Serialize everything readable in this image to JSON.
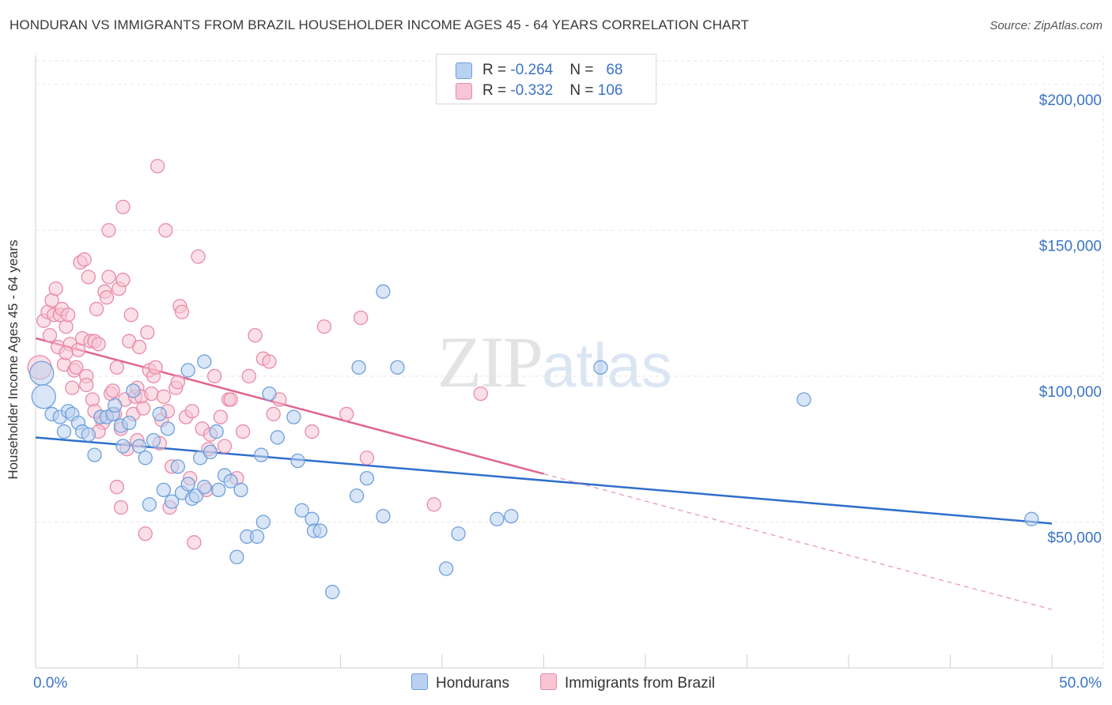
{
  "header": {
    "title": "HONDURAN VS IMMIGRANTS FROM BRAZIL HOUSEHOLDER INCOME AGES 45 - 64 YEARS CORRELATION CHART",
    "source": "Source: ZipAtlas.com"
  },
  "watermark": {
    "zip": "ZIP",
    "atlas": "atlas"
  },
  "legend": {
    "r_label": "R =",
    "n_label": "N =",
    "series": [
      {
        "r": "-0.264",
        "n": "68",
        "color": "#6f9fdc",
        "fill": "#b9d1f1"
      },
      {
        "r": "-0.332",
        "n": "106",
        "color": "#e98aa8",
        "fill": "#f7c5d4"
      }
    ]
  },
  "bottom_legend": [
    "Hondurans",
    "Immigrants from Brazil"
  ],
  "chart_data": {
    "type": "scatter",
    "title": "HONDURAN VS IMMIGRANTS FROM BRAZIL HOUSEHOLDER INCOME AGES 45 - 64 YEARS CORRELATION CHART",
    "ylabel": "Householder Income Ages 45 - 64 years",
    "xlabel": "",
    "xlim": [
      0,
      50
    ],
    "ylim": [
      0,
      210000
    ],
    "x_tick_labels": [
      "0.0%",
      "50.0%"
    ],
    "y_ticks": [
      50000,
      100000,
      150000,
      200000
    ],
    "y_tick_labels": [
      "$50,000",
      "$100,000",
      "$150,000",
      "$200,000"
    ],
    "grid": true,
    "legend_position": "top-center",
    "series": [
      {
        "name": "Hondurans",
        "color": "#6f9fdc",
        "fill": "#b9d1f1",
        "trend": {
          "x": [
            0,
            50
          ],
          "y": [
            79000,
            49500
          ],
          "style": "solid",
          "color": "#2f6fcc"
        },
        "points": [
          {
            "x": 0.3,
            "y": 101000,
            "big": true
          },
          {
            "x": 0.4,
            "y": 93000,
            "big": true
          },
          {
            "x": 0.8,
            "y": 87000
          },
          {
            "x": 1.2,
            "y": 86000
          },
          {
            "x": 1.4,
            "y": 81000
          },
          {
            "x": 1.6,
            "y": 88000
          },
          {
            "x": 1.8,
            "y": 87000
          },
          {
            "x": 2.1,
            "y": 84000
          },
          {
            "x": 2.3,
            "y": 81000
          },
          {
            "x": 2.6,
            "y": 80000
          },
          {
            "x": 2.9,
            "y": 73000
          },
          {
            "x": 3.2,
            "y": 86000
          },
          {
            "x": 3.5,
            "y": 86000
          },
          {
            "x": 3.8,
            "y": 87000
          },
          {
            "x": 3.9,
            "y": 90000
          },
          {
            "x": 4.2,
            "y": 83000
          },
          {
            "x": 4.3,
            "y": 76000
          },
          {
            "x": 4.6,
            "y": 84000
          },
          {
            "x": 4.8,
            "y": 95000
          },
          {
            "x": 5.1,
            "y": 76000
          },
          {
            "x": 5.4,
            "y": 72000
          },
          {
            "x": 5.6,
            "y": 56000
          },
          {
            "x": 5.8,
            "y": 78000
          },
          {
            "x": 6.1,
            "y": 87000
          },
          {
            "x": 6.3,
            "y": 61000
          },
          {
            "x": 6.5,
            "y": 82000
          },
          {
            "x": 6.7,
            "y": 57000
          },
          {
            "x": 7.0,
            "y": 69000
          },
          {
            "x": 7.2,
            "y": 60000
          },
          {
            "x": 7.5,
            "y": 63000
          },
          {
            "x": 7.7,
            "y": 58000
          },
          {
            "x": 7.9,
            "y": 59000
          },
          {
            "x": 8.1,
            "y": 72000
          },
          {
            "x": 8.3,
            "y": 62000
          },
          {
            "x": 8.6,
            "y": 74000
          },
          {
            "x": 8.9,
            "y": 81000
          },
          {
            "x": 9.0,
            "y": 61000
          },
          {
            "x": 9.3,
            "y": 66000
          },
          {
            "x": 9.6,
            "y": 64000
          },
          {
            "x": 9.9,
            "y": 38000
          },
          {
            "x": 10.1,
            "y": 61000
          },
          {
            "x": 10.4,
            "y": 45000
          },
          {
            "x": 10.9,
            "y": 45000
          },
          {
            "x": 11.1,
            "y": 73000
          },
          {
            "x": 11.2,
            "y": 50000
          },
          {
            "x": 11.5,
            "y": 94000
          },
          {
            "x": 11.9,
            "y": 79000
          },
          {
            "x": 12.7,
            "y": 86000
          },
          {
            "x": 12.9,
            "y": 71000
          },
          {
            "x": 13.1,
            "y": 54000
          },
          {
            "x": 13.6,
            "y": 51000
          },
          {
            "x": 13.7,
            "y": 47000
          },
          {
            "x": 14.0,
            "y": 47000
          },
          {
            "x": 14.6,
            "y": 26000
          },
          {
            "x": 15.8,
            "y": 59000
          },
          {
            "x": 15.9,
            "y": 103000
          },
          {
            "x": 16.3,
            "y": 65000
          },
          {
            "x": 17.1,
            "y": 129000
          },
          {
            "x": 17.1,
            "y": 52000
          },
          {
            "x": 17.8,
            "y": 103000
          },
          {
            "x": 20.2,
            "y": 34000
          },
          {
            "x": 20.8,
            "y": 46000
          },
          {
            "x": 22.7,
            "y": 51000
          },
          {
            "x": 23.4,
            "y": 52000
          },
          {
            "x": 27.8,
            "y": 103000
          },
          {
            "x": 37.8,
            "y": 92000
          },
          {
            "x": 49.0,
            "y": 51000
          },
          {
            "x": 7.5,
            "y": 102000
          },
          {
            "x": 8.3,
            "y": 105000
          }
        ]
      },
      {
        "name": "Immigrants from Brazil",
        "color": "#e98aa8",
        "fill": "#f7c5d4",
        "trend": {
          "x": [
            0,
            25
          ],
          "y": [
            113000,
            66500
          ],
          "style": "solid",
          "color": "#e0658e",
          "extension": {
            "x": [
              25,
              50
            ],
            "y": [
              66500,
              20000
            ],
            "style": "dashed"
          }
        },
        "points": [
          {
            "x": 0.2,
            "y": 103000,
            "big": true
          },
          {
            "x": 0.4,
            "y": 119000
          },
          {
            "x": 0.6,
            "y": 122000
          },
          {
            "x": 0.7,
            "y": 114000
          },
          {
            "x": 0.8,
            "y": 126000
          },
          {
            "x": 0.9,
            "y": 121000
          },
          {
            "x": 1.0,
            "y": 130000
          },
          {
            "x": 1.1,
            "y": 110000
          },
          {
            "x": 1.2,
            "y": 121000
          },
          {
            "x": 1.3,
            "y": 123000
          },
          {
            "x": 1.4,
            "y": 104000
          },
          {
            "x": 1.5,
            "y": 117000
          },
          {
            "x": 1.6,
            "y": 121000
          },
          {
            "x": 1.7,
            "y": 111000
          },
          {
            "x": 1.8,
            "y": 96000
          },
          {
            "x": 1.9,
            "y": 102000
          },
          {
            "x": 2.0,
            "y": 103000
          },
          {
            "x": 2.1,
            "y": 109000
          },
          {
            "x": 2.2,
            "y": 139000
          },
          {
            "x": 2.3,
            "y": 113000
          },
          {
            "x": 2.4,
            "y": 140000
          },
          {
            "x": 2.5,
            "y": 100000
          },
          {
            "x": 2.6,
            "y": 134000
          },
          {
            "x": 2.7,
            "y": 112000
          },
          {
            "x": 2.8,
            "y": 92000
          },
          {
            "x": 2.9,
            "y": 112000
          },
          {
            "x": 3.0,
            "y": 123000
          },
          {
            "x": 3.1,
            "y": 111000
          },
          {
            "x": 3.2,
            "y": 86000
          },
          {
            "x": 3.3,
            "y": 84000
          },
          {
            "x": 3.4,
            "y": 129000
          },
          {
            "x": 3.5,
            "y": 127000
          },
          {
            "x": 3.6,
            "y": 134000
          },
          {
            "x": 3.7,
            "y": 94000
          },
          {
            "x": 3.8,
            "y": 95000
          },
          {
            "x": 3.9,
            "y": 87000
          },
          {
            "x": 4.0,
            "y": 103000
          },
          {
            "x": 4.1,
            "y": 130000
          },
          {
            "x": 4.2,
            "y": 82000
          },
          {
            "x": 4.3,
            "y": 133000
          },
          {
            "x": 4.4,
            "y": 92000
          },
          {
            "x": 4.5,
            "y": 75000
          },
          {
            "x": 4.6,
            "y": 112000
          },
          {
            "x": 4.7,
            "y": 121000
          },
          {
            "x": 4.8,
            "y": 87000
          },
          {
            "x": 4.9,
            "y": 93000
          },
          {
            "x": 5.0,
            "y": 96000
          },
          {
            "x": 5.1,
            "y": 110000
          },
          {
            "x": 5.2,
            "y": 93000
          },
          {
            "x": 5.3,
            "y": 89000
          },
          {
            "x": 5.4,
            "y": 46000
          },
          {
            "x": 5.5,
            "y": 115000
          },
          {
            "x": 5.6,
            "y": 102000
          },
          {
            "x": 5.7,
            "y": 94000
          },
          {
            "x": 5.8,
            "y": 100000
          },
          {
            "x": 5.9,
            "y": 103000
          },
          {
            "x": 6.0,
            "y": 172000
          },
          {
            "x": 6.1,
            "y": 77000
          },
          {
            "x": 6.2,
            "y": 85000
          },
          {
            "x": 6.3,
            "y": 93000
          },
          {
            "x": 6.4,
            "y": 150000
          },
          {
            "x": 6.5,
            "y": 88000
          },
          {
            "x": 6.7,
            "y": 69000
          },
          {
            "x": 6.9,
            "y": 96000
          },
          {
            "x": 7.1,
            "y": 124000
          },
          {
            "x": 7.2,
            "y": 122000
          },
          {
            "x": 7.4,
            "y": 86000
          },
          {
            "x": 7.6,
            "y": 65000
          },
          {
            "x": 7.7,
            "y": 88000
          },
          {
            "x": 7.8,
            "y": 43000
          },
          {
            "x": 8.0,
            "y": 141000
          },
          {
            "x": 8.2,
            "y": 82000
          },
          {
            "x": 8.4,
            "y": 61000
          },
          {
            "x": 8.6,
            "y": 80000
          },
          {
            "x": 8.8,
            "y": 100000
          },
          {
            "x": 9.1,
            "y": 86000
          },
          {
            "x": 9.3,
            "y": 76000
          },
          {
            "x": 9.5,
            "y": 92000
          },
          {
            "x": 9.6,
            "y": 92000
          },
          {
            "x": 9.9,
            "y": 65000
          },
          {
            "x": 10.2,
            "y": 81000
          },
          {
            "x": 10.5,
            "y": 100000
          },
          {
            "x": 10.8,
            "y": 114000
          },
          {
            "x": 11.2,
            "y": 106000
          },
          {
            "x": 11.5,
            "y": 105000
          },
          {
            "x": 11.7,
            "y": 87000
          },
          {
            "x": 12.0,
            "y": 92000
          },
          {
            "x": 13.6,
            "y": 81000
          },
          {
            "x": 14.2,
            "y": 117000
          },
          {
            "x": 15.3,
            "y": 87000
          },
          {
            "x": 16.0,
            "y": 120000
          },
          {
            "x": 16.3,
            "y": 72000
          },
          {
            "x": 19.6,
            "y": 56000
          },
          {
            "x": 21.9,
            "y": 94000
          },
          {
            "x": 4.0,
            "y": 62000
          },
          {
            "x": 4.2,
            "y": 55000
          },
          {
            "x": 4.3,
            "y": 158000
          },
          {
            "x": 3.6,
            "y": 150000
          },
          {
            "x": 6.6,
            "y": 55000
          },
          {
            "x": 2.9,
            "y": 88000
          },
          {
            "x": 3.1,
            "y": 81000
          },
          {
            "x": 5.0,
            "y": 78000
          },
          {
            "x": 7.0,
            "y": 98000
          },
          {
            "x": 8.5,
            "y": 75000
          },
          {
            "x": 1.5,
            "y": 108000
          },
          {
            "x": 2.5,
            "y": 97000
          }
        ]
      }
    ]
  }
}
